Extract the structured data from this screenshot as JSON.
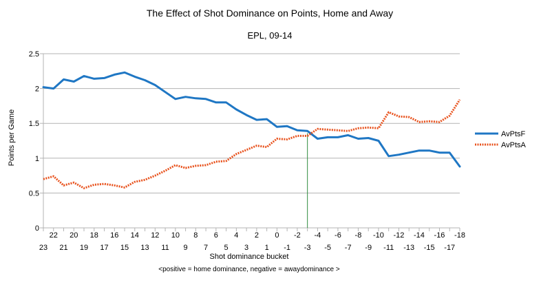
{
  "chart_data": {
    "type": "line",
    "title": "The Effect of Shot Dominance on Points, Home and Away",
    "subtitle": "EPL, 09-14",
    "xlabel": "Shot dominance bucket",
    "ylabel": "Points per Game",
    "note": "<positive = home dominance, negative = awaydominance >",
    "ylim": [
      0,
      2.5
    ],
    "yticks": [
      "0",
      "0.5",
      "1",
      "1.5",
      "2",
      "2.5"
    ],
    "grid": "horizontal",
    "legend_position": "right",
    "categories": [
      "23",
      "22",
      "21",
      "20",
      "19",
      "18",
      "17",
      "16",
      "15",
      "14",
      "13",
      "12",
      "11",
      "10",
      "9",
      "8",
      "7",
      "6",
      "5",
      "4",
      "3",
      "2",
      "1",
      "0",
      "-1",
      "-2",
      "-3",
      "-4",
      "-5",
      "-6",
      "-7",
      "-8",
      "-9",
      "-10",
      "-11",
      "-12",
      "-13",
      "-14",
      "-15",
      "-16",
      "-17",
      "-18"
    ],
    "marker_category": "-3",
    "series": [
      {
        "name": "AvPtsF",
        "color": "#1f77c4",
        "style": "solid",
        "values": [
          2.02,
          2.0,
          2.13,
          2.1,
          2.18,
          2.14,
          2.15,
          2.2,
          2.23,
          2.17,
          2.12,
          2.05,
          1.95,
          1.85,
          1.88,
          1.86,
          1.85,
          1.8,
          1.8,
          1.7,
          1.62,
          1.55,
          1.56,
          1.45,
          1.46,
          1.4,
          1.39,
          1.28,
          1.3,
          1.3,
          1.33,
          1.28,
          1.29,
          1.25,
          1.03,
          1.05,
          1.08,
          1.11,
          1.11,
          1.08,
          1.08,
          0.88
        ]
      },
      {
        "name": "AvPtsA",
        "color": "#e8521d",
        "style": "dotted",
        "values": [
          0.7,
          0.74,
          0.61,
          0.65,
          0.57,
          0.62,
          0.63,
          0.61,
          0.58,
          0.66,
          0.69,
          0.75,
          0.82,
          0.9,
          0.86,
          0.89,
          0.9,
          0.95,
          0.96,
          1.06,
          1.12,
          1.18,
          1.16,
          1.28,
          1.27,
          1.32,
          1.32,
          1.42,
          1.41,
          1.4,
          1.39,
          1.43,
          1.44,
          1.43,
          1.66,
          1.6,
          1.59,
          1.52,
          1.53,
          1.52,
          1.61,
          1.84
        ]
      }
    ]
  }
}
